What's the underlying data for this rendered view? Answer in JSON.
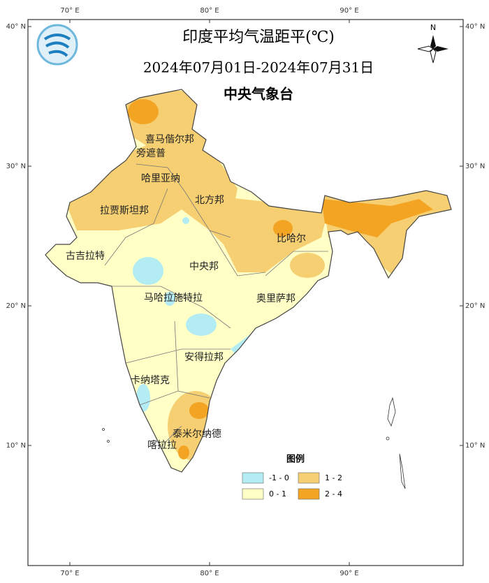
{
  "header": {
    "title": "印度平均气温距平(℃)",
    "date_range": "2024年07月01日-2024年07月31日",
    "agency": "中央气象台"
  },
  "axes": {
    "top": [
      "70° E",
      "80° E",
      "90° E"
    ],
    "bottom": [
      "70° E",
      "80° E",
      "90° E"
    ],
    "left": [
      "40° N",
      "30° N",
      "20° N",
      "10° N"
    ],
    "right": [
      "40° N",
      "30° N",
      "20° N",
      "10° N"
    ]
  },
  "compass": "N",
  "regions": [
    "喜马偕尔邦",
    "旁遮普",
    "哈里亚纳",
    "北方邦",
    "拉贾斯坦邦",
    "比哈尔",
    "古吉拉特",
    "中央邦",
    "马哈拉施特拉",
    "奥里萨邦",
    "安得拉邦",
    "卡纳塔克",
    "泰米尔纳德",
    "喀拉拉"
  ],
  "legend": {
    "title": "图例",
    "items": [
      {
        "label": "-1 - 0",
        "color": "#b4ecf4"
      },
      {
        "label": "1 - 2",
        "color": "#f6cf72"
      },
      {
        "label": "0 - 1",
        "color": "#ffffc6"
      },
      {
        "label": "2 - 4",
        "color": "#f4a423"
      }
    ]
  }
}
